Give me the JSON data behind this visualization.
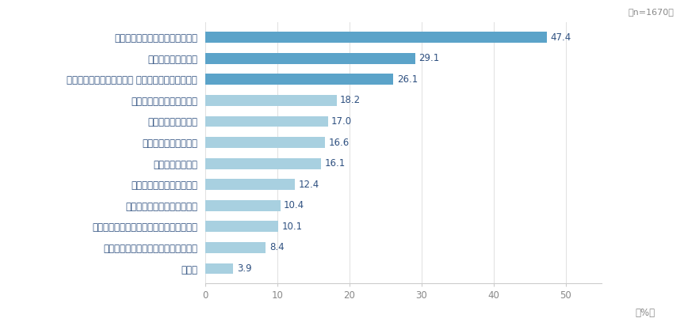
{
  "categories": [
    "仕事に社会的な意義を感じている",
    "雇用が安定している",
    "ワークライフ・バランスが とりやすく柔軟性がある",
    "企業の社会的知名度がある",
    "給与に満足している",
    "経営理念に共感できる",
    "成長の機会がある",
    "業務のゴールや目標が明確",
    "適切な地位に就かせてくれる",
    "直属の上司が適切に評価・指導してくれる",
    "経営層に優れたリーダーシップがある",
    "その他"
  ],
  "values": [
    47.4,
    29.1,
    26.1,
    18.2,
    17.0,
    16.6,
    16.1,
    12.4,
    10.4,
    10.1,
    8.4,
    3.9
  ],
  "bar_colors_top3": "#5ba3c9",
  "bar_colors_rest": "#a8d0e0",
  "value_color": "#2e5080",
  "label_color": "#2e5080",
  "axis_color": "#cccccc",
  "tick_color": "#888888",
  "background_color": "#ffffff",
  "n_label": "（n=1670）",
  "xlabel": "（%）",
  "xlim": [
    0,
    55
  ],
  "xticks": [
    0,
    10,
    20,
    30,
    40,
    50
  ],
  "bar_height": 0.52,
  "value_fontsize": 8.5,
  "label_fontsize": 8.5,
  "tick_fontsize": 8.5,
  "n_fontsize": 8
}
